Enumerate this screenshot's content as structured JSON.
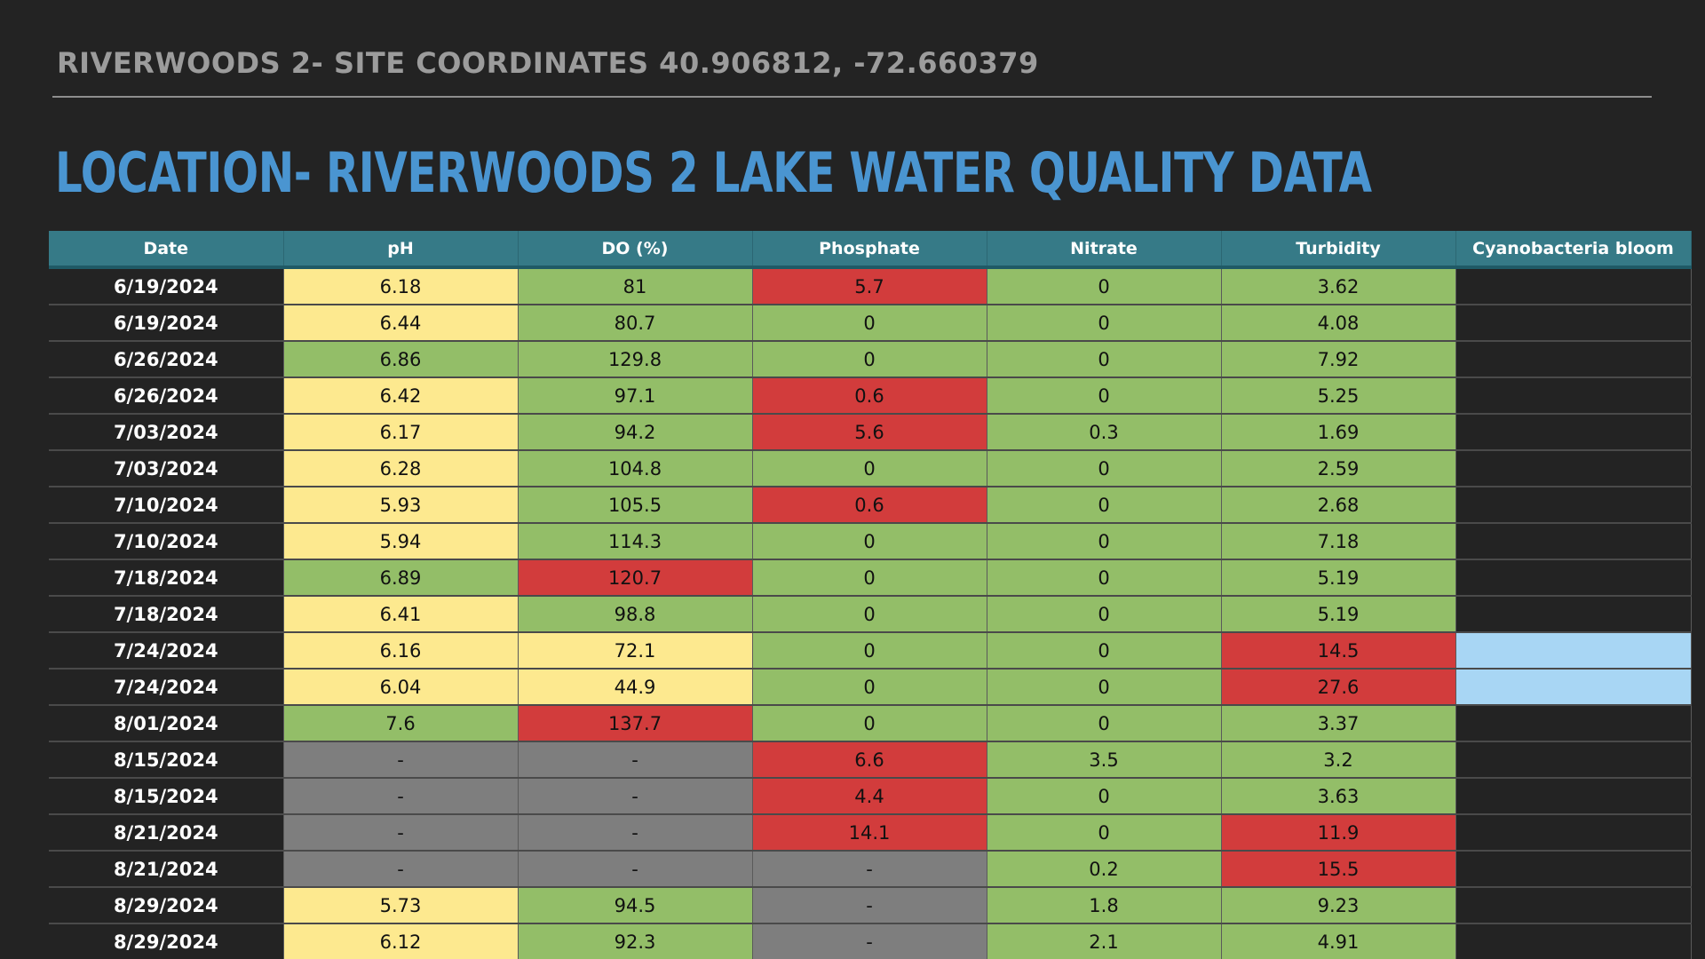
{
  "header": {
    "subtitle": "RIVERWOODS 2- SITE COORDINATES 40.906812, -72.660379",
    "title": "LOCATION- RIVERWOODS 2 LAKE WATER QUALITY DATA"
  },
  "colors": {
    "yellow": "#fde98f",
    "green": "#93be68",
    "red": "#d23c3c",
    "gray": "#7e7e7e",
    "blue": "#a8d6f4",
    "header": "#367a87",
    "title": "#4a95d1"
  },
  "table": {
    "columns": [
      "Date",
      "pH",
      "DO (%)",
      "Phosphate",
      "Nitrate",
      "Turbidity",
      "Cyanobacteria bloom"
    ],
    "rows": [
      {
        "date": "6/19/2024",
        "ph": "6.18",
        "ph_c": "yellow",
        "do": "81",
        "do_c": "green",
        "phos": "5.7",
        "phos_c": "red",
        "nit": "0",
        "nit_c": "green",
        "turb": "3.62",
        "turb_c": "green",
        "bloom": "",
        "bloom_c": "none"
      },
      {
        "date": "6/19/2024",
        "ph": "6.44",
        "ph_c": "yellow",
        "do": "80.7",
        "do_c": "green",
        "phos": "0",
        "phos_c": "green",
        "nit": "0",
        "nit_c": "green",
        "turb": "4.08",
        "turb_c": "green",
        "bloom": "",
        "bloom_c": "none"
      },
      {
        "date": "6/26/2024",
        "ph": "6.86",
        "ph_c": "green",
        "do": "129.8",
        "do_c": "green",
        "phos": "0",
        "phos_c": "green",
        "nit": "0",
        "nit_c": "green",
        "turb": "7.92",
        "turb_c": "green",
        "bloom": "",
        "bloom_c": "none"
      },
      {
        "date": "6/26/2024",
        "ph": "6.42",
        "ph_c": "yellow",
        "do": "97.1",
        "do_c": "green",
        "phos": "0.6",
        "phos_c": "red",
        "nit": "0",
        "nit_c": "green",
        "turb": "5.25",
        "turb_c": "green",
        "bloom": "",
        "bloom_c": "none"
      },
      {
        "date": "7/03/2024",
        "ph": "6.17",
        "ph_c": "yellow",
        "do": "94.2",
        "do_c": "green",
        "phos": "5.6",
        "phos_c": "red",
        "nit": "0.3",
        "nit_c": "green",
        "turb": "1.69",
        "turb_c": "green",
        "bloom": "",
        "bloom_c": "none"
      },
      {
        "date": "7/03/2024",
        "ph": "6.28",
        "ph_c": "yellow",
        "do": "104.8",
        "do_c": "green",
        "phos": "0",
        "phos_c": "green",
        "nit": "0",
        "nit_c": "green",
        "turb": "2.59",
        "turb_c": "green",
        "bloom": "",
        "bloom_c": "none"
      },
      {
        "date": "7/10/2024",
        "ph": "5.93",
        "ph_c": "yellow",
        "do": "105.5",
        "do_c": "green",
        "phos": "0.6",
        "phos_c": "red",
        "nit": "0",
        "nit_c": "green",
        "turb": "2.68",
        "turb_c": "green",
        "bloom": "",
        "bloom_c": "none"
      },
      {
        "date": "7/10/2024",
        "ph": "5.94",
        "ph_c": "yellow",
        "do": "114.3",
        "do_c": "green",
        "phos": "0",
        "phos_c": "green",
        "nit": "0",
        "nit_c": "green",
        "turb": "7.18",
        "turb_c": "green",
        "bloom": "",
        "bloom_c": "none"
      },
      {
        "date": "7/18/2024",
        "ph": "6.89",
        "ph_c": "green",
        "do": "120.7",
        "do_c": "red",
        "phos": "0",
        "phos_c": "green",
        "nit": "0",
        "nit_c": "green",
        "turb": "5.19",
        "turb_c": "green",
        "bloom": "",
        "bloom_c": "none"
      },
      {
        "date": "7/18/2024",
        "ph": "6.41",
        "ph_c": "yellow",
        "do": "98.8",
        "do_c": "green",
        "phos": "0",
        "phos_c": "green",
        "nit": "0",
        "nit_c": "green",
        "turb": "5.19",
        "turb_c": "green",
        "bloom": "",
        "bloom_c": "none"
      },
      {
        "date": "7/24/2024",
        "ph": "6.16",
        "ph_c": "yellow",
        "do": "72.1",
        "do_c": "yellow",
        "phos": "0",
        "phos_c": "green",
        "nit": "0",
        "nit_c": "green",
        "turb": "14.5",
        "turb_c": "red",
        "bloom": "",
        "bloom_c": "blue"
      },
      {
        "date": "7/24/2024",
        "ph": "6.04",
        "ph_c": "yellow",
        "do": "44.9",
        "do_c": "yellow",
        "phos": "0",
        "phos_c": "green",
        "nit": "0",
        "nit_c": "green",
        "turb": "27.6",
        "turb_c": "red",
        "bloom": "",
        "bloom_c": "blue"
      },
      {
        "date": "8/01/2024",
        "ph": "7.6",
        "ph_c": "green",
        "do": "137.7",
        "do_c": "red",
        "phos": "0",
        "phos_c": "green",
        "nit": "0",
        "nit_c": "green",
        "turb": "3.37",
        "turb_c": "green",
        "bloom": "",
        "bloom_c": "none"
      },
      {
        "date": "8/15/2024",
        "ph": "-",
        "ph_c": "gray",
        "do": "-",
        "do_c": "gray",
        "phos": "6.6",
        "phos_c": "red",
        "nit": "3.5",
        "nit_c": "green",
        "turb": "3.2",
        "turb_c": "green",
        "bloom": "",
        "bloom_c": "none"
      },
      {
        "date": "8/15/2024",
        "ph": "-",
        "ph_c": "gray",
        "do": "-",
        "do_c": "gray",
        "phos": "4.4",
        "phos_c": "red",
        "nit": "0",
        "nit_c": "green",
        "turb": "3.63",
        "turb_c": "green",
        "bloom": "",
        "bloom_c": "none"
      },
      {
        "date": "8/21/2024",
        "ph": "-",
        "ph_c": "gray",
        "do": "-",
        "do_c": "gray",
        "phos": "14.1",
        "phos_c": "red",
        "nit": "0",
        "nit_c": "green",
        "turb": "11.9",
        "turb_c": "red",
        "bloom": "",
        "bloom_c": "none"
      },
      {
        "date": "8/21/2024",
        "ph": "-",
        "ph_c": "gray",
        "do": "-",
        "do_c": "gray",
        "phos": "-",
        "phos_c": "gray",
        "nit": "0.2",
        "nit_c": "green",
        "turb": "15.5",
        "turb_c": "red",
        "bloom": "",
        "bloom_c": "none"
      },
      {
        "date": "8/29/2024",
        "ph": "5.73",
        "ph_c": "yellow",
        "do": "94.5",
        "do_c": "green",
        "phos": "-",
        "phos_c": "gray",
        "nit": "1.8",
        "nit_c": "green",
        "turb": "9.23",
        "turb_c": "green",
        "bloom": "",
        "bloom_c": "none"
      },
      {
        "date": "8/29/2024",
        "ph": "6.12",
        "ph_c": "yellow",
        "do": "92.3",
        "do_c": "green",
        "phos": "-",
        "phos_c": "gray",
        "nit": "2.1",
        "nit_c": "green",
        "turb": "4.91",
        "turb_c": "green",
        "bloom": "",
        "bloom_c": "none"
      }
    ]
  }
}
